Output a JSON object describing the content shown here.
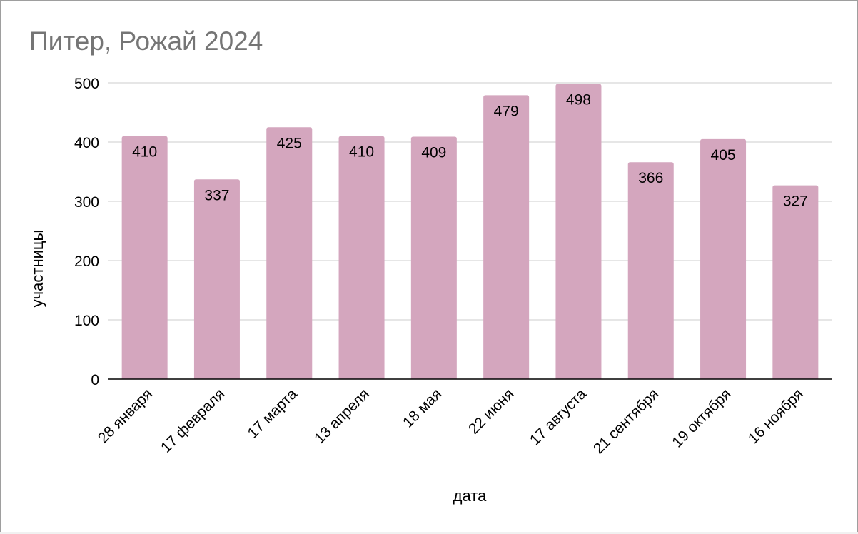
{
  "chart_data": {
    "type": "bar",
    "title": "Питер, Рожай 2024",
    "xlabel": "дата",
    "ylabel": "участницы",
    "categories": [
      "28 января",
      "17 февраля",
      "17 марта",
      "13 апреля",
      "18 мая",
      "22 июня",
      "17 августа",
      "21 сентября",
      "19 октября",
      "16 ноября"
    ],
    "values": [
      410,
      337,
      425,
      410,
      409,
      479,
      498,
      366,
      405,
      327
    ],
    "ylim": [
      0,
      500
    ],
    "yticks": [
      "0",
      "100",
      "200",
      "300",
      "400",
      "500"
    ],
    "grid": true,
    "legend": "none",
    "bar_color": "#d4a6be",
    "data_labels": true
  }
}
